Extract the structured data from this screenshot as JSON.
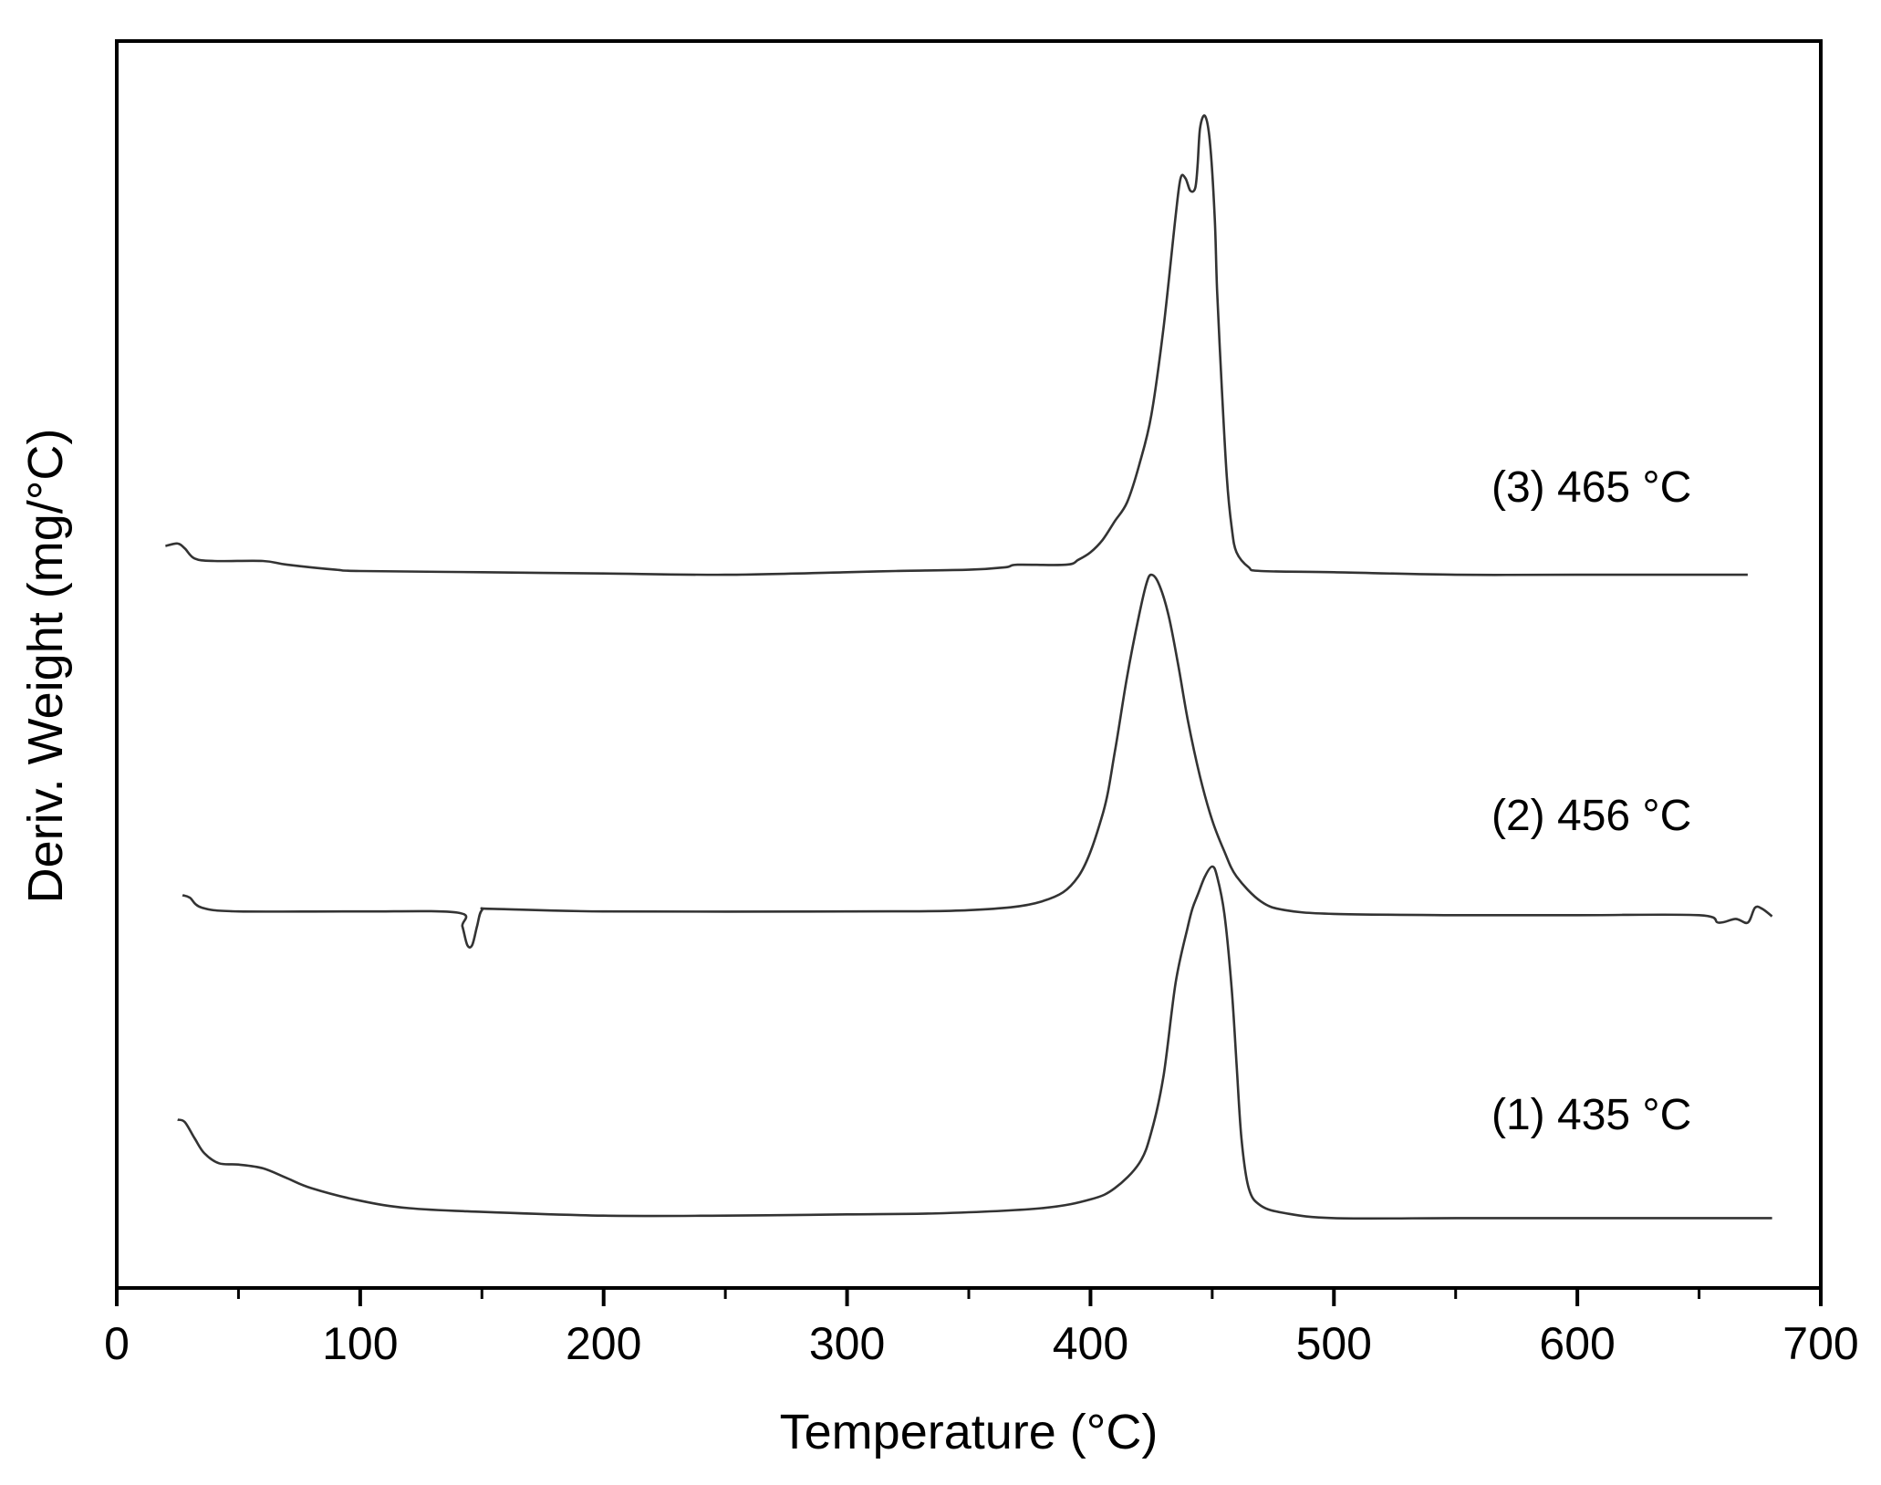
{
  "colors": {
    "background": "#ffffff",
    "axis": "#000000",
    "curve": "#333333",
    "text": "#000000"
  },
  "chart_data": {
    "type": "line",
    "title": "",
    "xlabel": "Temperature (°C)",
    "ylabel": "Deriv. Weight (mg/°C)",
    "xlim": [
      0,
      700
    ],
    "ylim": [
      0,
      1
    ],
    "y_tick_labels_shown": false,
    "grid": false,
    "legend": "none",
    "x_ticks": [
      0,
      100,
      200,
      300,
      400,
      500,
      600,
      700
    ],
    "x_tick_labels": [
      "0",
      "100",
      "200",
      "300",
      "400",
      "500",
      "600",
      "700"
    ],
    "x_minor_ticks": [
      50,
      150,
      250,
      350,
      450,
      550,
      650
    ],
    "annotations": [
      {
        "text": "(3) 465 °C",
        "series_index": 2
      },
      {
        "text": "(2) 456 °C",
        "series_index": 1
      },
      {
        "text": "(1) 435 °C",
        "series_index": 0
      }
    ],
    "series": [
      {
        "x": [
          25,
          28,
          32,
          36,
          42,
          50,
          60,
          70,
          80,
          100,
          120,
          150,
          200,
          250,
          300,
          340,
          380,
          400,
          410,
          420,
          425,
          430,
          435,
          440,
          442,
          444,
          447,
          450,
          452,
          455,
          458,
          460,
          462,
          465,
          470,
          480,
          500,
          550,
          600,
          680
        ],
        "y": [
          0.135,
          0.133,
          0.12,
          0.108,
          0.1,
          0.099,
          0.096,
          0.088,
          0.08,
          0.07,
          0.064,
          0.061,
          0.058,
          0.058,
          0.059,
          0.06,
          0.064,
          0.071,
          0.08,
          0.1,
          0.125,
          0.17,
          0.245,
          0.29,
          0.305,
          0.315,
          0.33,
          0.338,
          0.33,
          0.3,
          0.24,
          0.18,
          0.12,
          0.08,
          0.066,
          0.06,
          0.056,
          0.056,
          0.056,
          0.056
        ]
      },
      {
        "x": [
          27,
          30,
          35,
          50,
          100,
          140,
          142,
          144,
          146,
          148,
          150,
          155,
          200,
          300,
          350,
          380,
          395,
          405,
          410,
          415,
          420,
          423,
          425,
          428,
          432,
          436,
          440,
          445,
          450,
          455,
          460,
          470,
          480,
          500,
          550,
          600,
          650,
          658,
          665,
          670,
          673,
          676,
          680
        ],
        "y": [
          0.315,
          0.313,
          0.305,
          0.302,
          0.302,
          0.301,
          0.29,
          0.275,
          0.275,
          0.29,
          0.303,
          0.304,
          0.302,
          0.302,
          0.303,
          0.31,
          0.33,
          0.38,
          0.43,
          0.49,
          0.54,
          0.565,
          0.572,
          0.565,
          0.54,
          0.5,
          0.455,
          0.41,
          0.375,
          0.35,
          0.33,
          0.31,
          0.303,
          0.3,
          0.299,
          0.299,
          0.299,
          0.293,
          0.296,
          0.293,
          0.305,
          0.304,
          0.298
        ]
      },
      {
        "x": [
          20,
          25,
          28,
          32,
          40,
          60,
          70,
          90,
          100,
          150,
          200,
          250,
          300,
          320,
          350,
          365,
          370,
          390,
          395,
          400,
          405,
          410,
          415,
          420,
          425,
          430,
          435,
          437,
          439,
          441,
          443,
          444,
          445,
          447,
          449,
          451,
          452,
          454,
          456,
          458,
          460,
          465,
          470,
          500,
          550,
          600,
          670
        ],
        "y": [
          0.595,
          0.597,
          0.593,
          0.585,
          0.583,
          0.583,
          0.58,
          0.576,
          0.575,
          0.574,
          0.573,
          0.572,
          0.574,
          0.575,
          0.576,
          0.578,
          0.58,
          0.58,
          0.584,
          0.59,
          0.6,
          0.615,
          0.63,
          0.66,
          0.7,
          0.77,
          0.86,
          0.89,
          0.89,
          0.88,
          0.882,
          0.9,
          0.93,
          0.94,
          0.92,
          0.86,
          0.8,
          0.72,
          0.65,
          0.61,
          0.59,
          0.578,
          0.575,
          0.574,
          0.572,
          0.572,
          0.572
        ]
      }
    ]
  }
}
